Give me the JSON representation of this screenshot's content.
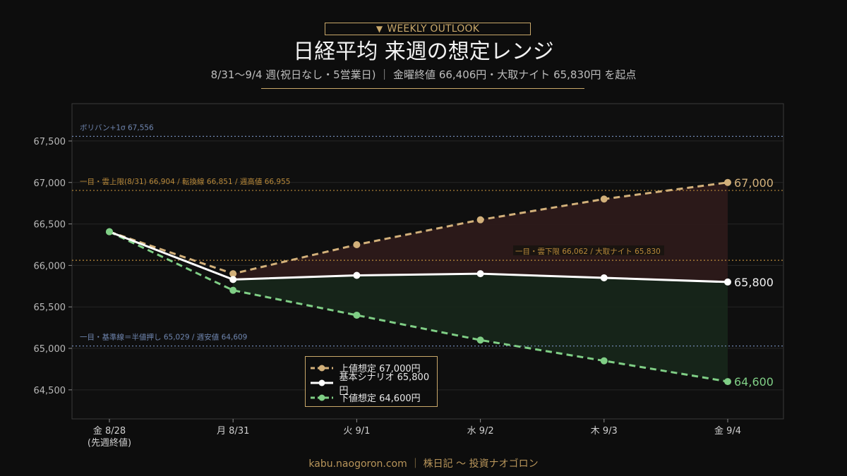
{
  "header": {
    "badge_icon": "▼",
    "badge_text": "WEEKLY OUTLOOK",
    "title": "日経平均 来週の想定レンジ",
    "subtitle": "8/31〜9/4 週(祝日なし・5営業日) ｜ 金曜終値 66,406円・大取ナイト 65,830円 を起点"
  },
  "footer": "kabu.naogoron.com ｜ 株日記 〜 投資ナオゴロン",
  "colors": {
    "upper": "#d2b07a",
    "base": "#ffffff",
    "lower": "#7fce85",
    "upper_fill": "#2d1a1a",
    "lower_fill": "#17261a",
    "ref_blue": "#6f86b0",
    "ref_orange": "#b8893a"
  },
  "chart_data": {
    "type": "line",
    "categories": [
      "金 8/28\n(先週終値)",
      "月 8/31",
      "火 9/1",
      "水 9/2",
      "木 9/3",
      "金 9/4"
    ],
    "ylim": [
      64150,
      67950
    ],
    "yticks": [
      64500,
      65000,
      65500,
      66000,
      66500,
      67000,
      67500
    ],
    "ytick_labels": [
      "64,500",
      "65,000",
      "65,500",
      "66,000",
      "66,500",
      "67,000",
      "67,500"
    ],
    "grid": true,
    "legend_position": "bottom-center",
    "series": [
      {
        "key": "upper",
        "name": "上値想定 67,000円",
        "dashed": true,
        "values": [
          66406,
          65900,
          66250,
          66550,
          66800,
          67000
        ],
        "end_label": "67,000"
      },
      {
        "key": "base",
        "name": "基本シナリオ 65,800円",
        "dashed": false,
        "values": [
          66406,
          65830,
          65880,
          65900,
          65850,
          65800
        ],
        "end_label": "65,800"
      },
      {
        "key": "lower",
        "name": "下値想定 64,600円",
        "dashed": true,
        "values": [
          66406,
          65700,
          65400,
          65100,
          64850,
          64600
        ],
        "end_label": "64,600"
      }
    ],
    "reference_lines": [
      {
        "value": 67556,
        "color_key": "ref_blue",
        "label": "ボリバン+1σ 67,556",
        "label_pos": "left"
      },
      {
        "value": 66904,
        "color_key": "ref_orange",
        "label": "一目・雲上限(8/31) 66,904 / 転換線 66,851 / 週高値 66,955",
        "label_pos": "left"
      },
      {
        "value": 66062,
        "color_key": "ref_orange",
        "label": "一目・雲下限 66,062 / 大取ナイト 65,830",
        "label_pos": "middle"
      },
      {
        "value": 65029,
        "color_key": "ref_blue",
        "label": "一目・基準線＝半値押し 65,029 / 週安値 64,609",
        "label_pos": "left"
      }
    ]
  }
}
